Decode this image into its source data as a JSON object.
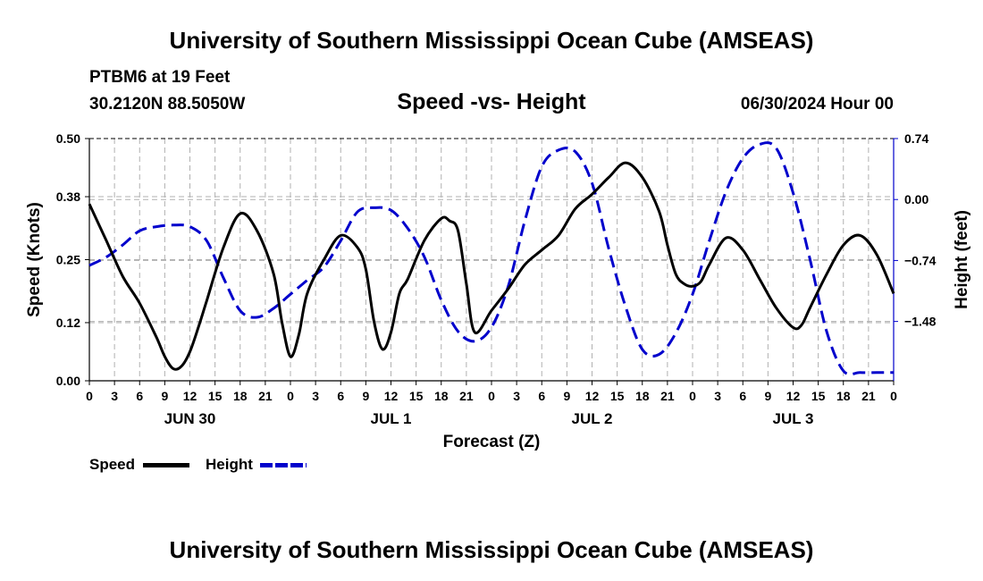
{
  "title": "University of Southern Mississippi Ocean Cube (AMSEAS)",
  "footer_title": "University of Southern Mississippi Ocean Cube (AMSEAS)",
  "station": {
    "name": "PTBM6 at 19 Feet",
    "coords": "30.2120N  88.5050W",
    "datetime": "06/30/2024 Hour 00"
  },
  "colors": {
    "speed": "#000000",
    "height": "#0000cc",
    "grid": "#b0b0b0"
  },
  "legend": [
    {
      "label": "Speed",
      "color": "#000000",
      "dash": "solid"
    },
    {
      "label": "Height",
      "color": "#0000cc",
      "dash": "dashed"
    }
  ],
  "chart_data": {
    "type": "line",
    "title": "Speed -vs- Height",
    "xlabel": "Forecast (Z)",
    "ylabel": "Speed (Knots)",
    "y2label": "Height (feet)",
    "xlim": [
      0,
      96
    ],
    "ylim": [
      0,
      0.5
    ],
    "y2lim": [
      -2.2,
      0.74
    ],
    "x_ticks": [
      0,
      3,
      6,
      9,
      12,
      15,
      18,
      21,
      24,
      27,
      30,
      33,
      36,
      39,
      42,
      45,
      48,
      51,
      54,
      57,
      60,
      63,
      66,
      69,
      72,
      75,
      78,
      81,
      84,
      87,
      90,
      93,
      96
    ],
    "x_tick_labels": [
      "0",
      "3",
      "6",
      "9",
      "12",
      "15",
      "18",
      "21",
      "0",
      "3",
      "6",
      "9",
      "12",
      "15",
      "18",
      "21",
      "0",
      "3",
      "6",
      "9",
      "12",
      "15",
      "18",
      "21",
      "0",
      "3",
      "6",
      "9",
      "12",
      "15",
      "18",
      "21",
      "0"
    ],
    "date_labels": [
      {
        "x": 12,
        "label": "JUN 30"
      },
      {
        "x": 36,
        "label": "JUL 1"
      },
      {
        "x": 60,
        "label": "JUL 2"
      },
      {
        "x": 84,
        "label": "JUL 3"
      }
    ],
    "y_ticks": [
      0.0,
      0.12,
      0.25,
      0.38,
      0.5
    ],
    "y_tick_labels": [
      "0.00",
      "0.12",
      "0.25",
      "0.38",
      "0.50"
    ],
    "y2_ticks": [
      0.74,
      0.0,
      -0.74,
      -1.48
    ],
    "y2_tick_labels": [
      "0.74",
      "0.00",
      "−0.74",
      "−1.48"
    ],
    "grid": true,
    "series": [
      {
        "name": "Speed",
        "axis": "left",
        "x": [
          0,
          2,
          4,
          6,
          8,
          9,
          10,
          11,
          12,
          13,
          14,
          16,
          18,
          20,
          22,
          23,
          24,
          25,
          26,
          28,
          30,
          32,
          33,
          34,
          35,
          36,
          37,
          38,
          40,
          42,
          43,
          44,
          45,
          46,
          48,
          50,
          52,
          54,
          56,
          58,
          60,
          62,
          64,
          66,
          68,
          69,
          70,
          71,
          72,
          73,
          74,
          76,
          78,
          80,
          82,
          84,
          85,
          86,
          88,
          90,
          92,
          94,
          96
        ],
        "y": [
          0.365,
          0.29,
          0.215,
          0.16,
          0.09,
          0.05,
          0.025,
          0.03,
          0.06,
          0.11,
          0.165,
          0.275,
          0.345,
          0.31,
          0.22,
          0.12,
          0.05,
          0.095,
          0.18,
          0.25,
          0.3,
          0.275,
          0.23,
          0.12,
          0.065,
          0.1,
          0.18,
          0.21,
          0.29,
          0.335,
          0.33,
          0.31,
          0.2,
          0.1,
          0.145,
          0.19,
          0.24,
          0.27,
          0.3,
          0.355,
          0.385,
          0.42,
          0.45,
          0.42,
          0.35,
          0.28,
          0.22,
          0.2,
          0.195,
          0.205,
          0.24,
          0.295,
          0.27,
          0.21,
          0.15,
          0.11,
          0.115,
          0.15,
          0.22,
          0.28,
          0.3,
          0.26,
          0.18
        ]
      },
      {
        "name": "Height",
        "axis": "right",
        "x": [
          0,
          2,
          4,
          6,
          8,
          10,
          12,
          14,
          16,
          18,
          20,
          22,
          24,
          26,
          28,
          30,
          32,
          34,
          36,
          38,
          40,
          42,
          44,
          46,
          48,
          50,
          52,
          54,
          56,
          58,
          60,
          62,
          64,
          66,
          68,
          70,
          72,
          74,
          76,
          78,
          80,
          82,
          84,
          86,
          88,
          90,
          92,
          94,
          96
        ],
        "y": [
          -0.8,
          -0.7,
          -0.55,
          -0.38,
          -0.33,
          -0.31,
          -0.33,
          -0.5,
          -0.95,
          -1.35,
          -1.43,
          -1.32,
          -1.15,
          -0.98,
          -0.82,
          -0.5,
          -0.15,
          -0.1,
          -0.13,
          -0.35,
          -0.7,
          -1.22,
          -1.6,
          -1.72,
          -1.55,
          -1.05,
          -0.25,
          0.4,
          0.6,
          0.58,
          0.2,
          -0.6,
          -1.3,
          -1.82,
          -1.88,
          -1.62,
          -1.15,
          -0.5,
          0.1,
          0.5,
          0.67,
          0.62,
          0.08,
          -0.72,
          -1.6,
          -2.08,
          -2.1,
          -2.1,
          -2.1
        ]
      }
    ]
  }
}
